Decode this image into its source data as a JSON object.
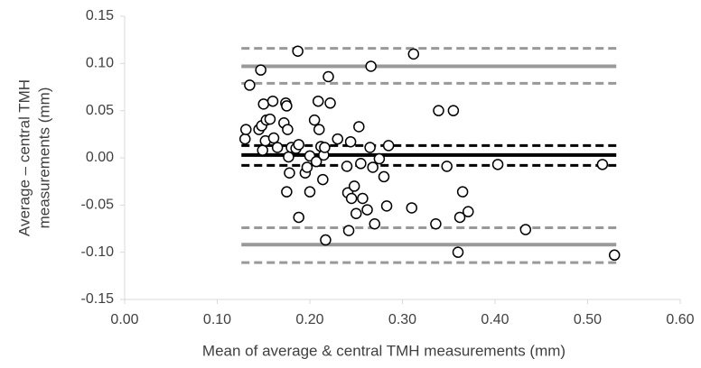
{
  "chart_data": {
    "type": "scatter",
    "xlabel": "Mean of average & central TMH measurements (mm)",
    "ylabel": [
      "Average – central TMH",
      "measurements (mm)"
    ],
    "x": [
      0.13,
      0.131,
      0.135,
      0.145,
      0.147,
      0.148,
      0.149,
      0.15,
      0.152,
      0.153,
      0.157,
      0.16,
      0.161,
      0.165,
      0.172,
      0.174,
      0.175,
      0.176,
      0.175,
      0.177,
      0.178,
      0.18,
      0.185,
      0.187,
      0.188,
      0.188,
      0.195,
      0.197,
      0.2,
      0.2,
      0.205,
      0.207,
      0.209,
      0.21,
      0.212,
      0.214,
      0.215,
      0.216,
      0.217,
      0.22,
      0.222,
      0.23,
      0.24,
      0.241,
      0.242,
      0.244,
      0.245,
      0.248,
      0.25,
      0.253,
      0.255,
      0.257,
      0.262,
      0.265,
      0.266,
      0.268,
      0.27,
      0.275,
      0.28,
      0.283,
      0.285,
      0.31,
      0.312,
      0.336,
      0.339,
      0.348,
      0.355,
      0.36,
      0.362,
      0.365,
      0.371,
      0.403,
      0.433,
      0.516,
      0.529
    ],
    "values": [
      0.02,
      0.03,
      0.077,
      0.03,
      0.093,
      0.034,
      0.008,
      0.057,
      0.018,
      0.04,
      0.041,
      0.06,
      0.021,
      0.011,
      0.037,
      0.058,
      0.055,
      0.03,
      -0.036,
      0.001,
      -0.016,
      0.011,
      0.01,
      0.113,
      0.014,
      -0.063,
      -0.016,
      -0.01,
      -0.036,
      0.002,
      0.04,
      -0.004,
      0.06,
      0.03,
      0.012,
      -0.023,
      0.003,
      0.011,
      -0.087,
      0.086,
      0.058,
      0.02,
      -0.009,
      -0.037,
      -0.077,
      0.017,
      -0.043,
      -0.03,
      -0.059,
      0.033,
      -0.006,
      -0.043,
      -0.055,
      0.011,
      0.097,
      -0.01,
      -0.07,
      -0.001,
      -0.02,
      -0.051,
      0.013,
      -0.053,
      0.11,
      -0.07,
      0.05,
      -0.009,
      0.05,
      -0.1,
      -0.063,
      -0.036,
      -0.057,
      -0.007,
      -0.076,
      -0.007,
      -0.103
    ],
    "marker_color": "#000000",
    "reference_lines": [
      {
        "value": 0.116,
        "color": "#999999",
        "style": "dashed"
      },
      {
        "value": 0.097,
        "color": "#999999",
        "style": "solid"
      },
      {
        "value": 0.079,
        "color": "#999999",
        "style": "dashed"
      },
      {
        "value": 0.013,
        "color": "#000000",
        "style": "dashed"
      },
      {
        "value": 0.003,
        "color": "#000000",
        "style": "solid"
      },
      {
        "value": -0.008,
        "color": "#000000",
        "style": "dashed"
      },
      {
        "value": -0.074,
        "color": "#999999",
        "style": "dashed"
      },
      {
        "value": -0.092,
        "color": "#999999",
        "style": "solid"
      },
      {
        "value": -0.111,
        "color": "#999999",
        "style": "dashed"
      }
    ],
    "xlim": [
      0,
      0.6
    ],
    "xticks": [
      {
        "value": 0,
        "label": "0.00"
      },
      {
        "value": 0.1,
        "label": "0.10"
      },
      {
        "value": 0.2,
        "label": "0.20"
      },
      {
        "value": 0.3,
        "label": "0.30"
      },
      {
        "value": 0.4,
        "label": "0.40"
      },
      {
        "value": 0.5,
        "label": "0.50"
      },
      {
        "value": 0.6,
        "label": "0.60"
      }
    ],
    "ylim": [
      -0.15,
      0.15
    ],
    "yticks": [
      {
        "value": 0.15,
        "label": "0.15"
      },
      {
        "value": 0.1,
        "label": "0.10"
      },
      {
        "value": 0.05,
        "label": "0.05"
      },
      {
        "value": 0,
        "label": "0.00"
      },
      {
        "value": -0.05,
        "label": "-0.05"
      },
      {
        "value": -0.1,
        "label": "-0.10"
      },
      {
        "value": -0.15,
        "label": "-0.15"
      }
    ],
    "grid": false
  }
}
